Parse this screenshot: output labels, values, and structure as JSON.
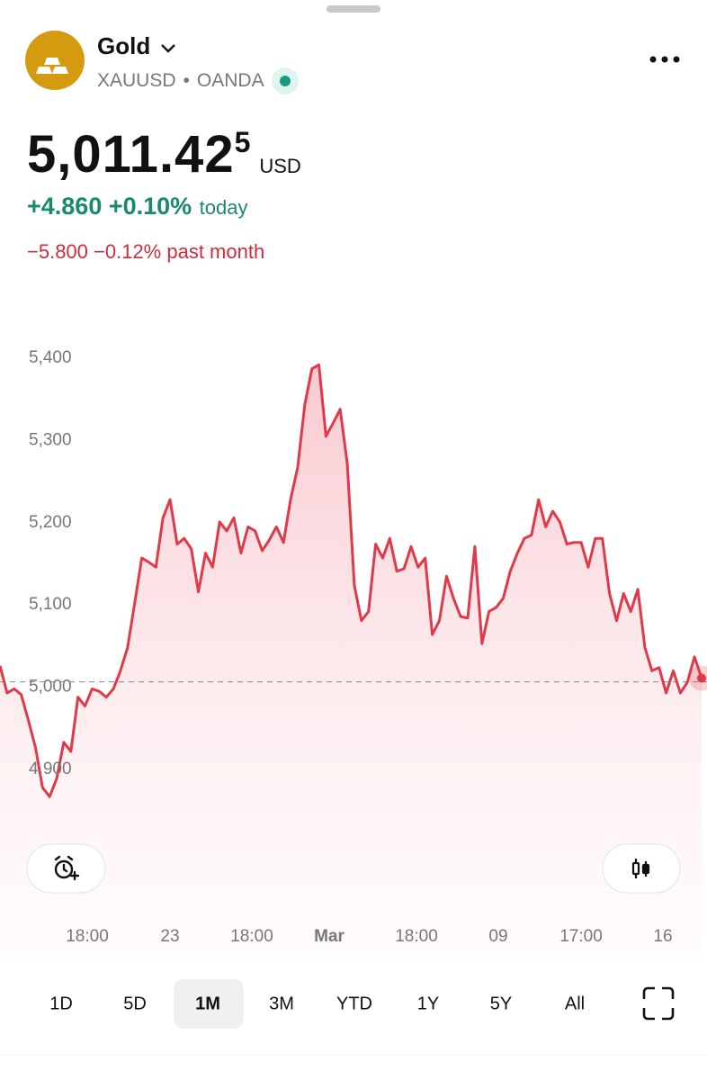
{
  "header": {
    "name": "Gold",
    "symbol": "XAUUSD",
    "separator": "•",
    "exchange": "OANDA"
  },
  "quote": {
    "price": "5,011.42",
    "price_last_digit": "5",
    "currency": "USD",
    "change_today": "+4.860 +0.10%",
    "today_label": "today",
    "change_month": "−5.800 −0.12% past month"
  },
  "chart": {
    "type": "line",
    "color": "#e0394a",
    "values": [
      5026,
      4993,
      4998,
      4991,
      4960,
      4927,
      4878,
      4867,
      4889,
      4933,
      4922,
      4988,
      4977,
      4998,
      4995,
      4988,
      4998,
      5020,
      5048,
      5102,
      5157,
      5152,
      5146,
      5206,
      5228,
      5174,
      5181,
      5168,
      5116,
      5163,
      5146,
      5201,
      5190,
      5206,
      5163,
      5195,
      5190,
      5166,
      5179,
      5195,
      5176,
      5228,
      5267,
      5343,
      5387,
      5392,
      5305,
      5321,
      5338,
      5272,
      5124,
      5081,
      5092,
      5174,
      5157,
      5181,
      5141,
      5144,
      5171,
      5146,
      5157,
      5064,
      5081,
      5135,
      5108,
      5086,
      5084,
      5171,
      5053,
      5092,
      5097,
      5108,
      5141,
      5163,
      5181,
      5185,
      5228,
      5195,
      5214,
      5201,
      5174,
      5176,
      5176,
      5146,
      5181,
      5181,
      5114,
      5081,
      5114,
      5092,
      5119,
      5048,
      5020,
      5024,
      4993,
      5020,
      4993,
      5006,
      5037,
      5011
    ],
    "reference_line": 5006.565,
    "ylim": [
      4800,
      5500
    ],
    "yticks": [
      {
        "value": 4900,
        "label": "4,900"
      },
      {
        "value": 5000,
        "label": "5,000"
      },
      {
        "value": 5100,
        "label": "5,100"
      },
      {
        "value": 5200,
        "label": "5,200"
      },
      {
        "value": 5300,
        "label": "5,300"
      },
      {
        "value": 5400,
        "label": "5,400"
      }
    ],
    "x_labels": [
      "18:00",
      "23",
      "18:00",
      "Mar",
      "18:00",
      "09",
      "17:00",
      "16"
    ]
  },
  "range_tabs": {
    "items": [
      "1D",
      "5D",
      "1M",
      "3M",
      "YTD",
      "1Y",
      "5Y",
      "All"
    ],
    "selected": "1M"
  }
}
